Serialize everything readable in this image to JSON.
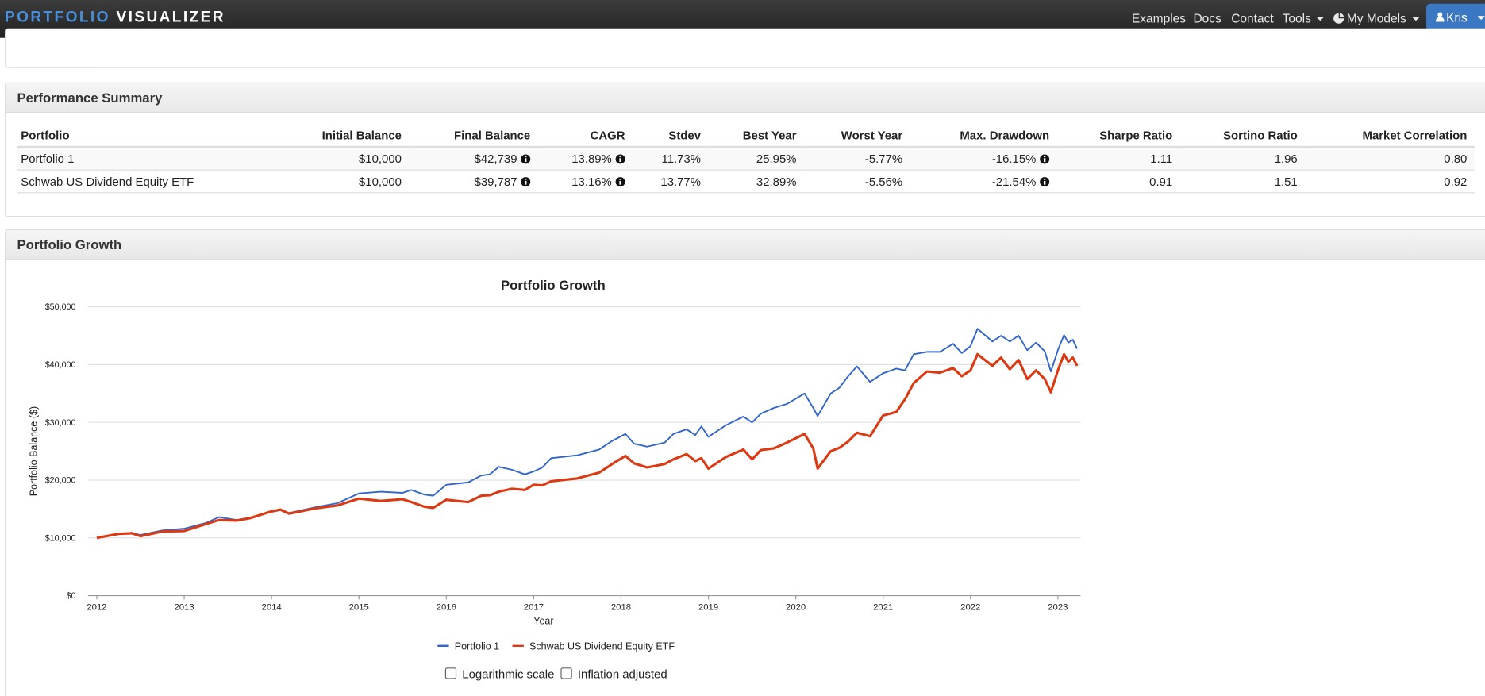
{
  "nav": {
    "brand_1": "PORTFOLIO",
    "brand_2": "VISUALIZER",
    "items": [
      "Examples",
      "Docs",
      "Contact",
      "Tools",
      "My Models"
    ],
    "user": "Kris"
  },
  "summary": {
    "title": "Performance Summary",
    "columns": [
      "Portfolio",
      "Initial Balance",
      "Final Balance",
      "CAGR",
      "Stdev",
      "Best Year",
      "Worst Year",
      "Max. Drawdown",
      "Sharpe Ratio",
      "Sortino Ratio",
      "Market Correlation"
    ],
    "rows": [
      [
        "Portfolio 1",
        "$10,000",
        "$42,739",
        "13.89%",
        "11.73%",
        "25.95%",
        "-5.77%",
        "-16.15%",
        "1.11",
        "1.96",
        "0.80"
      ],
      [
        "Schwab US Dividend Equity ETF",
        "$10,000",
        "$39,787",
        "13.16%",
        "13.77%",
        "32.89%",
        "-5.56%",
        "-21.54%",
        "0.91",
        "1.51",
        "0.92"
      ]
    ]
  },
  "growth": {
    "title": "Portfolio Growth"
  },
  "chart_data": {
    "type": "line",
    "title": "Portfolio Growth",
    "xlabel": "Year",
    "ylabel": "Portfolio Balance ($)",
    "x": [
      2012,
      2012.25,
      2012.4,
      2012.5,
      2012.75,
      2013,
      2013.25,
      2013.4,
      2013.6,
      2013.75,
      2014,
      2014.1,
      2014.2,
      2014.5,
      2014.75,
      2015,
      2015.25,
      2015.5,
      2015.6,
      2015.75,
      2015.85,
      2016,
      2016.25,
      2016.4,
      2016.5,
      2016.6,
      2016.75,
      2016.9,
      2017,
      2017.1,
      2017.2,
      2017.5,
      2017.75,
      2017.9,
      2018.05,
      2018.15,
      2018.3,
      2018.5,
      2018.6,
      2018.75,
      2018.85,
      2018.92,
      2019,
      2019.2,
      2019.4,
      2019.5,
      2019.6,
      2019.75,
      2019.9,
      2020.1,
      2020.2,
      2020.25,
      2020.4,
      2020.5,
      2020.6,
      2020.7,
      2020.85,
      2021,
      2021.15,
      2021.25,
      2021.35,
      2021.5,
      2021.65,
      2021.8,
      2021.9,
      2022,
      2022.08,
      2022.25,
      2022.35,
      2022.45,
      2022.55,
      2022.65,
      2022.75,
      2022.85,
      2022.92,
      2023,
      2023.07,
      2023.12,
      2023.17,
      2023.22
    ],
    "xlim": [
      2011.9,
      2023.26
    ],
    "xticks": [
      2012,
      2013,
      2014,
      2015,
      2016,
      2017,
      2018,
      2019,
      2020,
      2021,
      2022,
      2023
    ],
    "ylim": [
      0,
      50000
    ],
    "yticks": [
      {
        "value": 0,
        "label": "$0"
      },
      {
        "value": 10000,
        "label": "$10,000"
      },
      {
        "value": 20000,
        "label": "$20,000"
      },
      {
        "value": 30000,
        "label": "$30,000"
      },
      {
        "value": 40000,
        "label": "$40,000"
      },
      {
        "value": 50000,
        "label": "$50,000"
      }
    ],
    "grid": true,
    "legend": "bottom",
    "series": [
      {
        "name": "Portfolio 1",
        "color": "#3366cc",
        "values": [
          10000,
          10700,
          10900,
          10500,
          11300,
          11600,
          12600,
          13600,
          13100,
          13500,
          14500,
          14800,
          14300,
          15300,
          16000,
          17700,
          18000,
          17800,
          18300,
          17500,
          17300,
          19200,
          19600,
          20800,
          21000,
          22300,
          21800,
          21000,
          21500,
          22200,
          23800,
          24300,
          25300,
          26800,
          28000,
          26300,
          25800,
          26500,
          28000,
          28800,
          27800,
          29300,
          27500,
          29500,
          31000,
          30000,
          31500,
          32500,
          33200,
          35000,
          32500,
          31100,
          35000,
          36000,
          38000,
          39700,
          37000,
          38500,
          39300,
          39000,
          41800,
          42200,
          42200,
          43600,
          42000,
          43200,
          46200,
          44000,
          45000,
          44000,
          45000,
          42500,
          43800,
          42300,
          38800,
          42500,
          45100,
          43800,
          44300,
          42739
        ]
      },
      {
        "name": "Schwab US Dividend Equity ETF",
        "color": "#dc3912",
        "values": [
          10000,
          10700,
          10800,
          10300,
          11100,
          11200,
          12400,
          13100,
          13000,
          13400,
          14600,
          14900,
          14200,
          15100,
          15600,
          16800,
          16400,
          16700,
          16200,
          15400,
          15200,
          16600,
          16200,
          17300,
          17400,
          18000,
          18500,
          18300,
          19200,
          19100,
          19800,
          20300,
          21300,
          22800,
          24200,
          22900,
          22200,
          22800,
          23600,
          24500,
          23300,
          23800,
          22000,
          24000,
          25300,
          23600,
          25200,
          25500,
          26500,
          28000,
          25500,
          22000,
          25000,
          25600,
          26700,
          28200,
          27600,
          31200,
          31800,
          34000,
          36800,
          38800,
          38600,
          39400,
          38000,
          39000,
          41800,
          39800,
          41200,
          39200,
          40800,
          37500,
          39000,
          37500,
          35200,
          39000,
          41800,
          40500,
          41200,
          39787
        ]
      }
    ]
  },
  "options": [
    "Logarithmic scale",
    "Inflation adjusted"
  ]
}
